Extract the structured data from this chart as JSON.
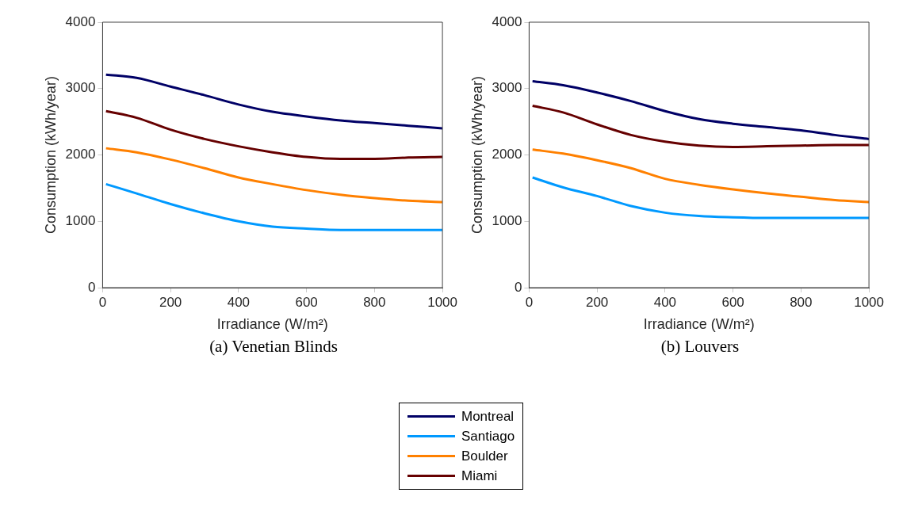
{
  "chart_data": [
    {
      "type": "line",
      "title": "(a)  Venetian Blinds",
      "xlabel": "Irradiance (W/m²)",
      "ylabel": "Consumption (kWh/year)",
      "x": [
        10,
        100,
        200,
        300,
        400,
        500,
        600,
        700,
        800,
        900,
        1000
      ],
      "xlim": [
        0,
        1000
      ],
      "xticks": [
        0,
        200,
        400,
        600,
        800,
        1000
      ],
      "ylim": [
        0,
        4000
      ],
      "yticks": [
        0,
        1000,
        2000,
        3000,
        4000
      ],
      "grid": false,
      "legend": "bottom",
      "marker": "none",
      "line_style": "solid",
      "series": [
        {
          "name": "Montreal",
          "color": "#000066",
          "values": [
            3210,
            3160,
            3030,
            2900,
            2760,
            2650,
            2580,
            2520,
            2480,
            2440,
            2400
          ]
        },
        {
          "name": "Santiago",
          "color": "#0099ff",
          "values": [
            1560,
            1420,
            1260,
            1120,
            1000,
            920,
            890,
            870,
            870,
            870,
            870
          ]
        },
        {
          "name": "Boulder",
          "color": "#ff8000",
          "values": [
            2100,
            2040,
            1930,
            1800,
            1660,
            1560,
            1470,
            1400,
            1350,
            1310,
            1290
          ]
        },
        {
          "name": "Miami",
          "color": "#660000",
          "values": [
            2660,
            2560,
            2380,
            2240,
            2130,
            2040,
            1970,
            1940,
            1940,
            1960,
            1970
          ]
        }
      ]
    },
    {
      "type": "line",
      "title": "(b)  Louvers",
      "xlabel": "Irradiance (W/m²)",
      "ylabel": "Consumption (kWh/year)",
      "x": [
        10,
        100,
        200,
        300,
        400,
        500,
        600,
        700,
        800,
        900,
        1000
      ],
      "xlim": [
        0,
        1000
      ],
      "xticks": [
        0,
        200,
        400,
        600,
        800,
        1000
      ],
      "ylim": [
        0,
        4000
      ],
      "yticks": [
        0,
        1000,
        2000,
        3000,
        4000
      ],
      "grid": false,
      "marker": "none",
      "line_style": "solid",
      "series": [
        {
          "color": "#000066",
          "values": [
            3110,
            3050,
            2940,
            2810,
            2660,
            2540,
            2470,
            2420,
            2370,
            2300,
            2240
          ]
        },
        {
          "color": "#0099ff",
          "values": [
            1660,
            1510,
            1380,
            1230,
            1130,
            1080,
            1060,
            1050,
            1050,
            1050,
            1050
          ]
        },
        {
          "color": "#ff8000",
          "values": [
            2080,
            2020,
            1920,
            1800,
            1640,
            1550,
            1480,
            1420,
            1370,
            1320,
            1290
          ]
        },
        {
          "color": "#660000",
          "values": [
            2740,
            2640,
            2460,
            2300,
            2200,
            2140,
            2120,
            2130,
            2140,
            2150,
            2150
          ]
        }
      ]
    }
  ]
}
